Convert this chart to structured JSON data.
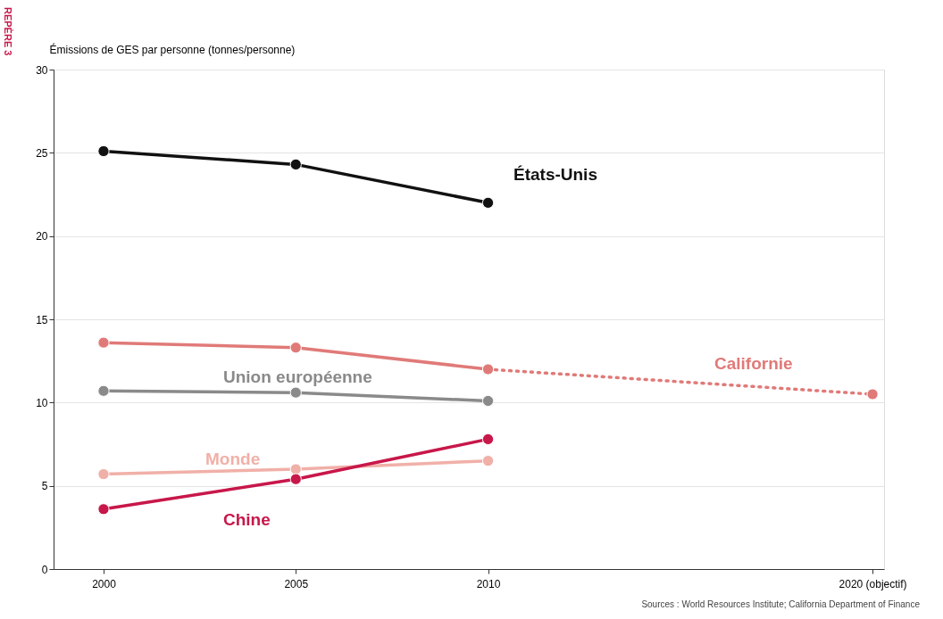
{
  "chart_data": {
    "type": "line",
    "ylabel": "Émissions de GES par personne (tonnes/personne)",
    "x": [
      2000,
      2005,
      2010
    ],
    "xlim": [
      1998.7,
      2020.3
    ],
    "xticks": [
      2000,
      2005,
      2010,
      {
        "value": 2020,
        "label": "2020 (objectif)"
      }
    ],
    "ylim": [
      0,
      30
    ],
    "yticks": [
      0,
      5,
      10,
      15,
      20,
      25,
      30
    ],
    "grid": "y",
    "marker": "circle",
    "line_style": "solid",
    "series": [
      {
        "name": "États-Unis",
        "color": "#111111",
        "values": [
          25.1,
          24.3,
          22.0
        ]
      },
      {
        "name": "Californie",
        "color": "#e07a78",
        "values": [
          13.6,
          13.3,
          12.0
        ]
      },
      {
        "color": "#e07a78",
        "x": [
          2010,
          2020
        ],
        "values": [
          12.0,
          10.5
        ],
        "line_style": "dotted"
      },
      {
        "name": "Union européenne",
        "color": "#8a8a8a",
        "values": [
          10.7,
          10.6,
          10.1
        ]
      },
      {
        "name": "Monde",
        "color": "#f0b0a8",
        "values": [
          5.7,
          6.0,
          6.5
        ]
      },
      {
        "name": "Chine",
        "color": "#c8174a",
        "values": [
          3.6,
          5.4,
          7.8
        ]
      }
    ],
    "annotations": [
      "Sources : World Resources Institute; California Department of Finance",
      "REPÈRE 3"
    ]
  }
}
